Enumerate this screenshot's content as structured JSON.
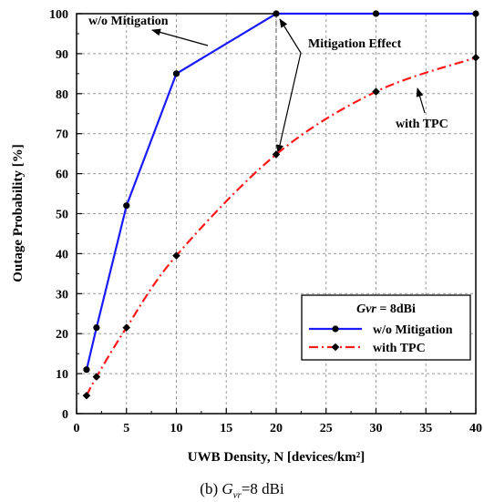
{
  "chart_data": {
    "type": "line",
    "xlabel": "UWB Density, N [devices/km²]",
    "ylabel": "Outage Probability [%]",
    "xlim": [
      0,
      40
    ],
    "ylim": [
      0,
      100
    ],
    "xticks": [
      "0",
      "5",
      "10",
      "15",
      "20",
      "25",
      "30",
      "35",
      "40"
    ],
    "yticks": [
      "0",
      "10",
      "20",
      "30",
      "40",
      "50",
      "60",
      "70",
      "80",
      "90",
      "100"
    ],
    "grid": true,
    "legend_position": "bottom-right",
    "legend_title": "Gvr = 8dBi",
    "series": [
      {
        "name": "w/o Mitigation",
        "color": "#1a1aff",
        "line_style": "solid",
        "marker": "circle",
        "x": [
          1,
          2,
          5,
          10,
          20,
          30,
          40
        ],
        "y": [
          11,
          21.5,
          52,
          85,
          100,
          100,
          100
        ]
      },
      {
        "name": "with TPC",
        "color": "#ff1a1a",
        "line_style": "dash-dot",
        "marker": "diamond",
        "x": [
          1,
          2,
          5,
          10,
          20,
          30,
          40
        ],
        "y": [
          4.5,
          9.2,
          21.5,
          39.5,
          64.8,
          80.5,
          89
        ]
      }
    ],
    "annotations": [
      {
        "text": "w/o Mitigation"
      },
      {
        "text": "Mitigation Effect"
      },
      {
        "text": "with TPC"
      }
    ]
  },
  "caption": {
    "prefix": "(b) ",
    "symbol": "G",
    "subscript": "vr",
    "suffix": "=8  dBi"
  }
}
